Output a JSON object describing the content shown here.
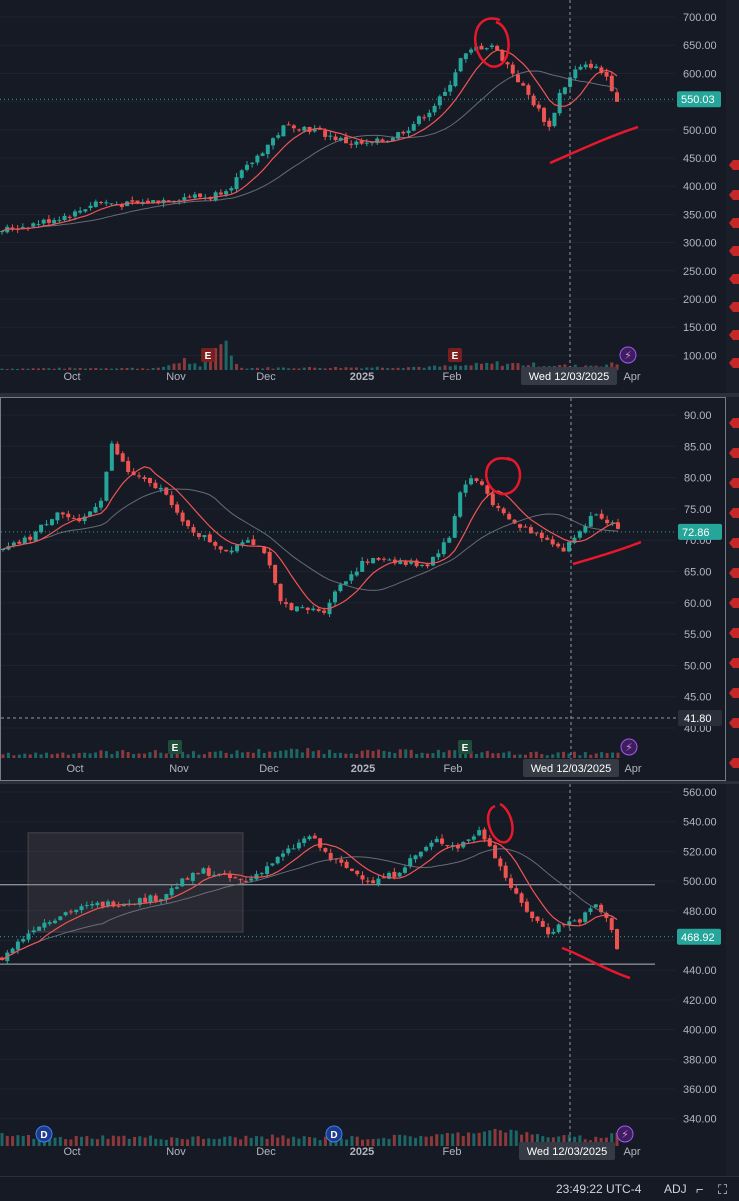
{
  "colors": {
    "background": "#161a25",
    "grid": "#1f2330",
    "up": "#26a69a",
    "down": "#ef5350",
    "ma_fast": "#f05454",
    "ma_slow": "#7a7f8c",
    "axis_text": "#b2b5be",
    "annotation": "#e8182c",
    "price_tag": "#26a69a",
    "crosshair": "#9598a1"
  },
  "panels": [
    {
      "name": "panel-1",
      "y_axis_labels": [
        "700.00",
        "650.00",
        "600.00",
        "550.00",
        "500.00",
        "450.00",
        "400.00",
        "350.00",
        "300.00",
        "250.00",
        "200.00",
        "150.00",
        "100.00"
      ],
      "x_axis_labels": [
        "Oct",
        "Nov",
        "Dec",
        "2025",
        "Feb",
        "Apr"
      ],
      "crosshair_date": "Wed 12/03/2025",
      "last_price": "550.03",
      "earnings_marker": "E"
    },
    {
      "name": "panel-2",
      "y_axis_labels": [
        "90.00",
        "85.00",
        "80.00",
        "75.00",
        "70.00",
        "65.00",
        "60.00",
        "55.00",
        "50.00",
        "45.00",
        "40.00"
      ],
      "x_axis_labels": [
        "Oct",
        "Nov",
        "Dec",
        "2025",
        "Feb",
        "Apr"
      ],
      "crosshair_date": "Wed 12/03/2025",
      "last_price": "72.86",
      "crosshair_price": "41.80",
      "earnings_marker": "E"
    },
    {
      "name": "panel-3",
      "y_axis_labels": [
        "560.00",
        "540.00",
        "520.00",
        "500.00",
        "480.00",
        "460.00",
        "440.00",
        "420.00",
        "400.00",
        "380.00",
        "360.00",
        "340.00"
      ],
      "x_axis_labels": [
        "Oct",
        "Nov",
        "Dec",
        "2025",
        "Feb",
        "Apr"
      ],
      "crosshair_date": "Wed 12/03/2025",
      "last_price": "468.92",
      "dividend_marker": "D"
    }
  ],
  "statusbar": {
    "time": "23:49:22 UTC-4",
    "adj": "ADJ"
  },
  "chart_data": [
    {
      "type": "candlestick",
      "x_labels": [
        "Oct",
        "Nov",
        "Dec",
        "2025",
        "Feb",
        "Apr"
      ],
      "ylim": [
        75,
        710
      ],
      "last_price": 550.03,
      "close_path": [
        [
          0,
          320
        ],
        [
          8,
          335
        ],
        [
          14,
          350
        ],
        [
          18,
          370
        ],
        [
          24,
          365
        ],
        [
          30,
          372
        ],
        [
          36,
          380
        ],
        [
          40,
          378
        ],
        [
          44,
          400
        ],
        [
          48,
          440
        ],
        [
          52,
          480
        ],
        [
          54,
          500
        ],
        [
          56,
          505
        ],
        [
          60,
          495
        ],
        [
          66,
          475
        ],
        [
          70,
          470
        ],
        [
          74,
          480
        ],
        [
          78,
          500
        ],
        [
          82,
          530
        ],
        [
          85,
          560
        ],
        [
          88,
          620
        ],
        [
          91,
          640
        ],
        [
          94,
          645
        ],
        [
          97,
          610
        ],
        [
          100,
          570
        ],
        [
          103,
          530
        ],
        [
          105,
          500
        ],
        [
          107,
          560
        ],
        [
          110,
          600
        ],
        [
          113,
          610
        ],
        [
          116,
          590
        ],
        [
          118,
          550
        ]
      ],
      "volume_path": [
        [
          0,
          4
        ],
        [
          10,
          5
        ],
        [
          20,
          6
        ],
        [
          30,
          5
        ],
        [
          35,
          30
        ],
        [
          38,
          8
        ],
        [
          42,
          100
        ],
        [
          46,
          6
        ],
        [
          60,
          7
        ],
        [
          80,
          9
        ],
        [
          88,
          12
        ],
        [
          95,
          20
        ],
        [
          103,
          16
        ],
        [
          110,
          12
        ],
        [
          118,
          18
        ]
      ],
      "volume_max": 120
    },
    {
      "type": "candlestick",
      "x_labels": [
        "Oct",
        "Nov",
        "Dec",
        "2025",
        "Feb",
        "Apr"
      ],
      "ylim": [
        38.5,
        92
      ],
      "last_price": 72.86,
      "close_path": [
        [
          0,
          70
        ],
        [
          5,
          72
        ],
        [
          10,
          76
        ],
        [
          14,
          74
        ],
        [
          18,
          78
        ],
        [
          20,
          86
        ],
        [
          23,
          82
        ],
        [
          27,
          80
        ],
        [
          30,
          79
        ],
        [
          33,
          74
        ],
        [
          37,
          72
        ],
        [
          41,
          70
        ],
        [
          45,
          72
        ],
        [
          48,
          70
        ],
        [
          51,
          62
        ],
        [
          55,
          61
        ],
        [
          59,
          61
        ],
        [
          62,
          65
        ],
        [
          66,
          68
        ],
        [
          70,
          69
        ],
        [
          74,
          68
        ],
        [
          78,
          68
        ],
        [
          82,
          72
        ],
        [
          84,
          79
        ],
        [
          86,
          81
        ],
        [
          88,
          80
        ],
        [
          91,
          76
        ],
        [
          94,
          74
        ],
        [
          97,
          73
        ],
        [
          100,
          72
        ],
        [
          103,
          70
        ],
        [
          106,
          73
        ],
        [
          109,
          76
        ],
        [
          112,
          74
        ],
        [
          113,
          72.86
        ]
      ],
      "volume_path": [
        [
          0,
          5
        ],
        [
          20,
          8
        ],
        [
          40,
          7
        ],
        [
          50,
          10
        ],
        [
          60,
          9
        ],
        [
          70,
          8
        ],
        [
          80,
          9
        ],
        [
          90,
          7
        ],
        [
          100,
          6
        ],
        [
          113,
          6
        ]
      ],
      "volume_max": 40
    },
    {
      "type": "candlestick",
      "x_labels": [
        "Oct",
        "Nov",
        "Dec",
        "2025",
        "Feb",
        "Apr"
      ],
      "ylim": [
        330,
        565
      ],
      "last_price": 468.92,
      "close_path": [
        [
          0,
          455
        ],
        [
          6,
          475
        ],
        [
          12,
          485
        ],
        [
          18,
          490
        ],
        [
          24,
          492
        ],
        [
          30,
          495
        ],
        [
          34,
          505
        ],
        [
          38,
          512
        ],
        [
          42,
          508
        ],
        [
          46,
          505
        ],
        [
          50,
          515
        ],
        [
          54,
          525
        ],
        [
          58,
          535
        ],
        [
          62,
          520
        ],
        [
          66,
          512
        ],
        [
          70,
          505
        ],
        [
          74,
          510
        ],
        [
          78,
          522
        ],
        [
          82,
          532
        ],
        [
          86,
          528
        ],
        [
          90,
          538
        ],
        [
          92,
          530
        ],
        [
          94,
          515
        ],
        [
          97,
          495
        ],
        [
          100,
          482
        ],
        [
          103,
          472
        ],
        [
          106,
          478
        ],
        [
          109,
          480
        ],
        [
          112,
          490
        ],
        [
          115,
          475
        ],
        [
          116,
          462
        ]
      ],
      "volume_path": [
        [
          0,
          360
        ],
        [
          10,
          350
        ],
        [
          20,
          355
        ],
        [
          30,
          352
        ],
        [
          40,
          350
        ],
        [
          50,
          355
        ],
        [
          60,
          350
        ],
        [
          70,
          352
        ],
        [
          80,
          358
        ],
        [
          88,
          365
        ],
        [
          92,
          378
        ],
        [
          96,
          372
        ],
        [
          100,
          360
        ],
        [
          106,
          355
        ],
        [
          112,
          350
        ],
        [
          116,
          365
        ]
      ],
      "volume_base": 330,
      "support_lines": [
        503,
        451
      ]
    }
  ]
}
